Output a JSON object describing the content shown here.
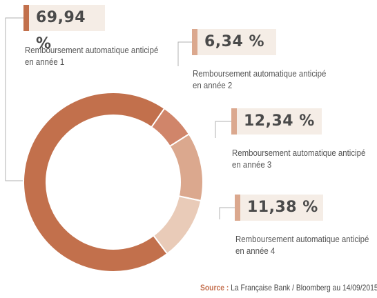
{
  "chart_data": {
    "type": "pie",
    "donut": true,
    "title": "",
    "series": [
      {
        "name": "Remboursement automatique anticipé en année 1",
        "label_lines": [
          "Remboursement automatique anticipé",
          "en année 1"
        ],
        "value": 69.94,
        "display": "69,94 %",
        "color": "#c2704c"
      },
      {
        "name": "Remboursement automatique anticipé en année 2",
        "label_lines": [
          "Remboursement automatique anticipé",
          "en année 2"
        ],
        "value": 6.34,
        "display": "6,34 %",
        "color": "#d0856a"
      },
      {
        "name": "Remboursement automatique anticipé en année 3",
        "label_lines": [
          "Remboursement automatique anticipé",
          "en année 3"
        ],
        "value": 12.34,
        "display": "12,34 %",
        "color": "#dba88e"
      },
      {
        "name": "Remboursement automatique anticipé en année 4",
        "label_lines": [
          "Remboursement automatique anticipé",
          "en année 4"
        ],
        "value": 11.38,
        "display": "11,38 %",
        "color": "#e9cbb8"
      }
    ]
  },
  "source": {
    "label": "Source :",
    "text": "La Française Bank / Bloomberg au 14/09/2015"
  },
  "colors": {
    "box_background": "#f5ede6",
    "accent_dark": "#c2704c",
    "accent_light": "#dba88e",
    "connector": "#b0b0b0"
  }
}
